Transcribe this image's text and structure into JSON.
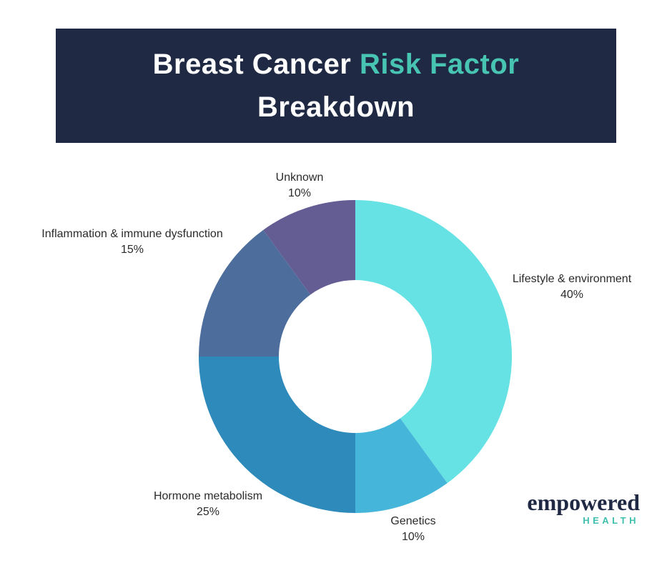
{
  "header": {
    "title_part1": "Breast Cancer ",
    "title_accent": "Risk Factor",
    "title_line2": "Breakdown",
    "bg_color": "#1f2944",
    "accent_color": "#48c4b3"
  },
  "chart_data": {
    "type": "pie",
    "variant": "donut",
    "title": "Breast Cancer Risk Factor Breakdown",
    "start_angle_deg": 0,
    "direction": "clockwise",
    "hole_ratio": 0.49,
    "slices": [
      {
        "label": "Lifestyle & environment",
        "value": 40,
        "pct_label": "40%",
        "color": "#66e2e4"
      },
      {
        "label": "Genetics",
        "value": 10,
        "pct_label": "10%",
        "color": "#45b6d9"
      },
      {
        "label": "Hormone metabolism",
        "value": 25,
        "pct_label": "25%",
        "color": "#2e8aba"
      },
      {
        "label": "Inflammation & immune dysfunction",
        "value": 15,
        "pct_label": "15%",
        "color": "#4d6e9d"
      },
      {
        "label": "Unknown",
        "value": 10,
        "pct_label": "10%",
        "color": "#635d94"
      }
    ]
  },
  "logo": {
    "brand": "empowered",
    "sub": "HEALTH",
    "brand_color": "#1f2944",
    "sub_color": "#3fbfae"
  }
}
